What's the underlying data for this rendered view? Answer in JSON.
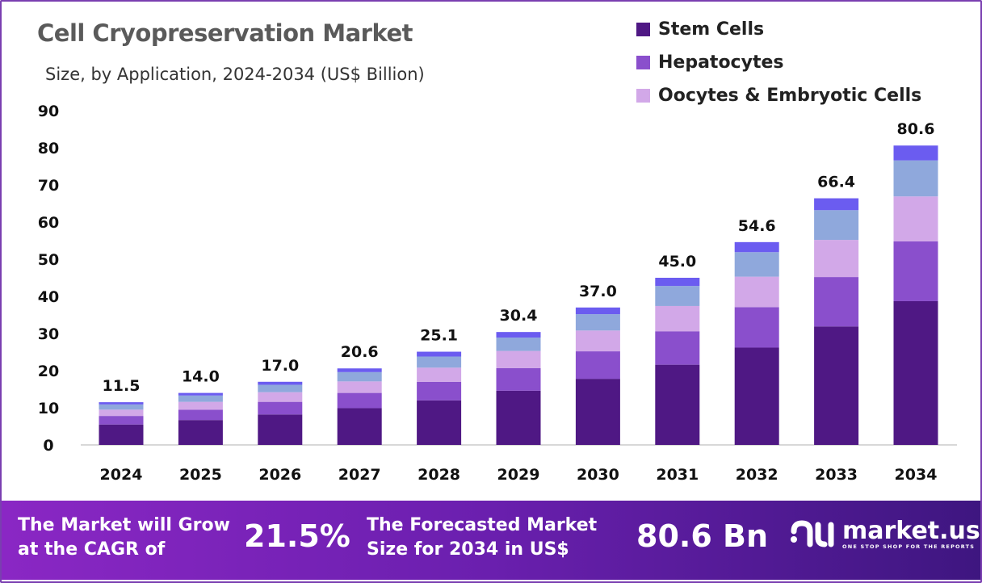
{
  "chart_data": {
    "type": "bar",
    "stacked": true,
    "title": "Cell Cryopreservation Market",
    "subtitle": "Size, by Application, 2024-2034 (US$ Billion)",
    "categories": [
      "2024",
      "2025",
      "2026",
      "2027",
      "2028",
      "2029",
      "2030",
      "2031",
      "2032",
      "2033",
      "2034"
    ],
    "totals": [
      "11.5",
      "14.0",
      "17.0",
      "20.6",
      "25.1",
      "30.4",
      "37.0",
      "45.0",
      "54.6",
      "66.4",
      "80.6"
    ],
    "series": [
      {
        "name": "Stem Cells",
        "color": "#4f1884",
        "values": [
          5.5,
          6.7,
          8.2,
          9.9,
          12.0,
          14.6,
          17.8,
          21.6,
          26.2,
          31.9,
          38.7
        ]
      },
      {
        "name": "Hepatocytes",
        "color": "#8a4fcc",
        "values": [
          2.3,
          2.8,
          3.4,
          4.1,
          5.0,
          6.1,
          7.4,
          9.0,
          10.9,
          13.3,
          16.1
        ]
      },
      {
        "name": "Oocytes & Embryotic Cells",
        "color": "#d2a8e8",
        "values": [
          1.7,
          2.1,
          2.6,
          3.1,
          3.8,
          4.6,
          5.6,
          6.8,
          8.2,
          10.0,
          12.1
        ]
      },
      {
        "color": "#8fa8dc",
        "values": [
          1.4,
          1.7,
          2.0,
          2.5,
          3.0,
          3.6,
          4.4,
          5.4,
          6.6,
          8.0,
          9.7
        ]
      },
      {
        "color": "#6b5cf0",
        "values": [
          0.6,
          0.7,
          0.8,
          1.0,
          1.3,
          1.5,
          1.8,
          2.2,
          2.7,
          3.2,
          4.0
        ]
      }
    ],
    "yticks": [
      "0",
      "10",
      "20",
      "30",
      "40",
      "50",
      "60",
      "70",
      "80",
      "90"
    ],
    "ylim": [
      0,
      90
    ],
    "grid": false,
    "legend": "top-right"
  },
  "banner": {
    "cagr_label_1": "The Market will Grow",
    "cagr_label_2": "at the CAGR of",
    "cagr_value": "21.5%",
    "forecast_label_1": "The Forecasted Market",
    "forecast_label_2": "Size for 2034 in US$",
    "forecast_value": "80.6 Bn",
    "logo_name": "market.us",
    "logo_tagline": "ONE STOP SHOP FOR THE REPORTS"
  }
}
